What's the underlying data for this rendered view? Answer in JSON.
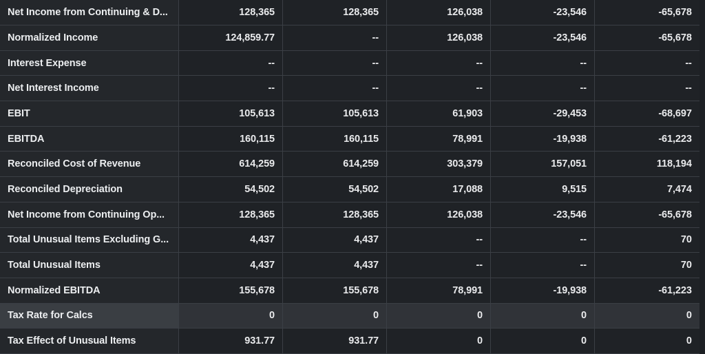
{
  "table": {
    "rows": [
      {
        "label": "Net Income from Continuing & D...",
        "values": [
          "128,365",
          "128,365",
          "126,038",
          "-23,546",
          "-65,678"
        ]
      },
      {
        "label": "Normalized Income",
        "values": [
          "124,859.77",
          "--",
          "126,038",
          "-23,546",
          "-65,678"
        ]
      },
      {
        "label": "Interest Expense",
        "values": [
          "--",
          "--",
          "--",
          "--",
          "--"
        ]
      },
      {
        "label": "Net Interest Income",
        "values": [
          "--",
          "--",
          "--",
          "--",
          "--"
        ]
      },
      {
        "label": "EBIT",
        "values": [
          "105,613",
          "105,613",
          "61,903",
          "-29,453",
          "-68,697"
        ]
      },
      {
        "label": "EBITDA",
        "values": [
          "160,115",
          "160,115",
          "78,991",
          "-19,938",
          "-61,223"
        ]
      },
      {
        "label": "Reconciled Cost of Revenue",
        "values": [
          "614,259",
          "614,259",
          "303,379",
          "157,051",
          "118,194"
        ]
      },
      {
        "label": "Reconciled Depreciation",
        "values": [
          "54,502",
          "54,502",
          "17,088",
          "9,515",
          "7,474"
        ]
      },
      {
        "label": "Net Income from Continuing Op...",
        "values": [
          "128,365",
          "128,365",
          "126,038",
          "-23,546",
          "-65,678"
        ]
      },
      {
        "label": "Total Unusual Items Excluding G...",
        "values": [
          "4,437",
          "4,437",
          "--",
          "--",
          "70"
        ]
      },
      {
        "label": "Total Unusual Items",
        "values": [
          "4,437",
          "4,437",
          "--",
          "--",
          "70"
        ]
      },
      {
        "label": "Normalized EBITDA",
        "values": [
          "155,678",
          "155,678",
          "78,991",
          "-19,938",
          "-61,223"
        ]
      },
      {
        "label": "Tax Rate for Calcs",
        "values": [
          "0",
          "0",
          "0",
          "0",
          "0"
        ],
        "highlighted": true
      },
      {
        "label": "Tax Effect of Unusual Items",
        "values": [
          "931.77",
          "931.77",
          "0",
          "0",
          "0"
        ]
      }
    ]
  }
}
